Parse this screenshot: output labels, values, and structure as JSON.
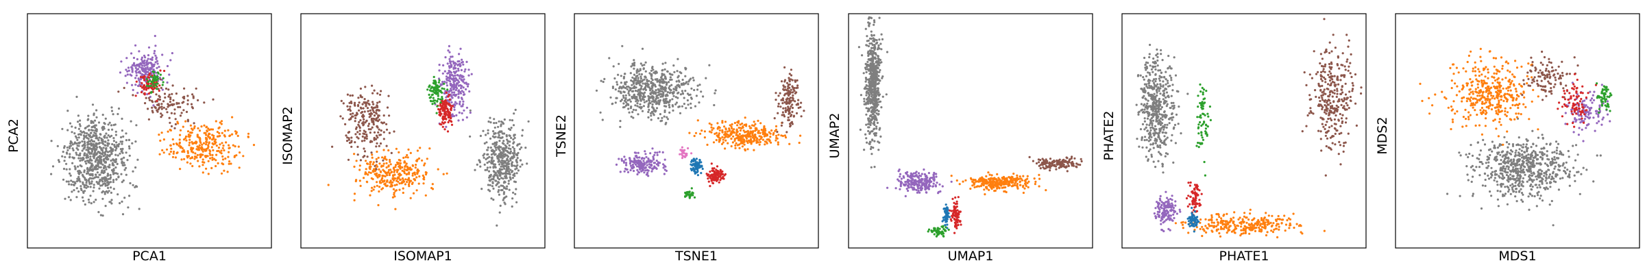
{
  "figure": {
    "description_colors": {
      "blue": "#1f77b4",
      "orange": "#ff7f0e",
      "green": "#2ca02c",
      "red": "#d62728",
      "purple": "#9467bd",
      "brown": "#8c564b",
      "pink": "#e377c2",
      "gray": "#7f7f7f"
    }
  },
  "chart_data": [
    {
      "type": "scatter",
      "xlabel": "PCA1",
      "ylabel": "PCA2",
      "ticks_shown": false,
      "grid": false,
      "clusters": [
        {
          "color": "gray",
          "center": [
            0.28,
            0.62
          ],
          "spread": [
            0.12,
            0.16
          ],
          "weight": 0.5
        },
        {
          "color": "orange",
          "center": [
            0.72,
            0.56
          ],
          "spread": [
            0.14,
            0.09
          ],
          "weight": 0.2
        },
        {
          "color": "purple",
          "center": [
            0.48,
            0.24
          ],
          "spread": [
            0.07,
            0.08
          ],
          "weight": 0.14
        },
        {
          "color": "brown",
          "center": [
            0.58,
            0.38
          ],
          "spread": [
            0.1,
            0.07
          ],
          "weight": 0.08
        },
        {
          "color": "red",
          "center": [
            0.5,
            0.3
          ],
          "spread": [
            0.04,
            0.05
          ],
          "weight": 0.05
        },
        {
          "color": "green",
          "center": [
            0.52,
            0.28
          ],
          "spread": [
            0.03,
            0.04
          ],
          "weight": 0.03
        }
      ]
    },
    {
      "type": "scatter",
      "xlabel": "ISOMAP1",
      "ylabel": "ISOMAP2",
      "ticks_shown": false,
      "grid": false,
      "clusters": [
        {
          "color": "gray",
          "center": [
            0.82,
            0.62
          ],
          "spread": [
            0.07,
            0.14
          ],
          "weight": 0.3
        },
        {
          "color": "orange",
          "center": [
            0.38,
            0.68
          ],
          "spread": [
            0.14,
            0.08
          ],
          "weight": 0.22
        },
        {
          "color": "brown",
          "center": [
            0.27,
            0.46
          ],
          "spread": [
            0.09,
            0.14
          ],
          "weight": 0.16
        },
        {
          "color": "purple",
          "center": [
            0.63,
            0.3
          ],
          "spread": [
            0.05,
            0.12
          ],
          "weight": 0.18
        },
        {
          "color": "red",
          "center": [
            0.59,
            0.42
          ],
          "spread": [
            0.03,
            0.06
          ],
          "weight": 0.08
        },
        {
          "color": "green",
          "center": [
            0.55,
            0.33
          ],
          "spread": [
            0.03,
            0.05
          ],
          "weight": 0.06
        }
      ]
    },
    {
      "type": "scatter",
      "xlabel": "TSNE1",
      "ylabel": "TSNE2",
      "ticks_shown": false,
      "grid": false,
      "clusters": [
        {
          "color": "gray",
          "center": [
            0.32,
            0.33
          ],
          "spread": [
            0.15,
            0.1
          ],
          "weight": 0.4
        },
        {
          "color": "orange",
          "center": [
            0.7,
            0.52
          ],
          "spread": [
            0.14,
            0.05
          ],
          "weight": 0.22
        },
        {
          "color": "brown",
          "center": [
            0.88,
            0.36
          ],
          "spread": [
            0.04,
            0.1
          ],
          "weight": 0.1
        },
        {
          "color": "purple",
          "center": [
            0.28,
            0.64
          ],
          "spread": [
            0.08,
            0.04
          ],
          "weight": 0.12
        },
        {
          "color": "red",
          "center": [
            0.58,
            0.69
          ],
          "spread": [
            0.03,
            0.03
          ],
          "weight": 0.07
        },
        {
          "color": "blue",
          "center": [
            0.5,
            0.65
          ],
          "spread": [
            0.02,
            0.03
          ],
          "weight": 0.05
        },
        {
          "color": "green",
          "center": [
            0.47,
            0.77
          ],
          "spread": [
            0.02,
            0.02
          ],
          "weight": 0.02
        },
        {
          "color": "pink",
          "center": [
            0.45,
            0.6
          ],
          "spread": [
            0.02,
            0.02
          ],
          "weight": 0.02
        }
      ]
    },
    {
      "type": "scatter",
      "xlabel": "UMAP1",
      "ylabel": "UMAP2",
      "ticks_shown": false,
      "grid": false,
      "clusters": [
        {
          "color": "gray",
          "center": [
            0.1,
            0.3
          ],
          "spread": [
            0.03,
            0.22
          ],
          "weight": 0.4
        },
        {
          "color": "purple",
          "center": [
            0.28,
            0.72
          ],
          "spread": [
            0.08,
            0.04
          ],
          "weight": 0.16
        },
        {
          "color": "orange",
          "center": [
            0.62,
            0.72
          ],
          "spread": [
            0.12,
            0.03
          ],
          "weight": 0.2
        },
        {
          "color": "brown",
          "center": [
            0.86,
            0.64
          ],
          "spread": [
            0.08,
            0.02
          ],
          "weight": 0.1
        },
        {
          "color": "red",
          "center": [
            0.44,
            0.86
          ],
          "spread": [
            0.02,
            0.05
          ],
          "weight": 0.06
        },
        {
          "color": "blue",
          "center": [
            0.4,
            0.86
          ],
          "spread": [
            0.01,
            0.04
          ],
          "weight": 0.04
        },
        {
          "color": "green",
          "center": [
            0.37,
            0.93
          ],
          "spread": [
            0.03,
            0.02
          ],
          "weight": 0.04
        }
      ]
    },
    {
      "type": "scatter",
      "xlabel": "PHATE1",
      "ylabel": "PHATE2",
      "ticks_shown": false,
      "grid": false,
      "clusters": [
        {
          "color": "gray",
          "center": [
            0.14,
            0.4
          ],
          "spread": [
            0.06,
            0.2
          ],
          "weight": 0.34
        },
        {
          "color": "brown",
          "center": [
            0.86,
            0.35
          ],
          "spread": [
            0.08,
            0.2
          ],
          "weight": 0.22
        },
        {
          "color": "orange",
          "center": [
            0.5,
            0.9
          ],
          "spread": [
            0.2,
            0.04
          ],
          "weight": 0.2
        },
        {
          "color": "purple",
          "center": [
            0.18,
            0.84
          ],
          "spread": [
            0.04,
            0.06
          ],
          "weight": 0.1
        },
        {
          "color": "green",
          "center": [
            0.33,
            0.45
          ],
          "spread": [
            0.02,
            0.18
          ],
          "weight": 0.05
        },
        {
          "color": "red",
          "center": [
            0.3,
            0.78
          ],
          "spread": [
            0.02,
            0.06
          ],
          "weight": 0.05
        },
        {
          "color": "blue",
          "center": [
            0.29,
            0.88
          ],
          "spread": [
            0.02,
            0.03
          ],
          "weight": 0.04
        }
      ]
    },
    {
      "type": "scatter",
      "xlabel": "MDS1",
      "ylabel": "MDS2",
      "ticks_shown": false,
      "grid": false,
      "clusters": [
        {
          "color": "gray",
          "center": [
            0.52,
            0.66
          ],
          "spread": [
            0.18,
            0.11
          ],
          "weight": 0.46
        },
        {
          "color": "orange",
          "center": [
            0.38,
            0.34
          ],
          "spread": [
            0.16,
            0.12
          ],
          "weight": 0.28
        },
        {
          "color": "brown",
          "center": [
            0.62,
            0.27
          ],
          "spread": [
            0.1,
            0.08
          ],
          "weight": 0.08
        },
        {
          "color": "purple",
          "center": [
            0.78,
            0.42
          ],
          "spread": [
            0.07,
            0.08
          ],
          "weight": 0.08
        },
        {
          "color": "red",
          "center": [
            0.74,
            0.38
          ],
          "spread": [
            0.05,
            0.07
          ],
          "weight": 0.06
        },
        {
          "color": "green",
          "center": [
            0.86,
            0.36
          ],
          "spread": [
            0.03,
            0.06
          ],
          "weight": 0.04
        }
      ]
    }
  ]
}
